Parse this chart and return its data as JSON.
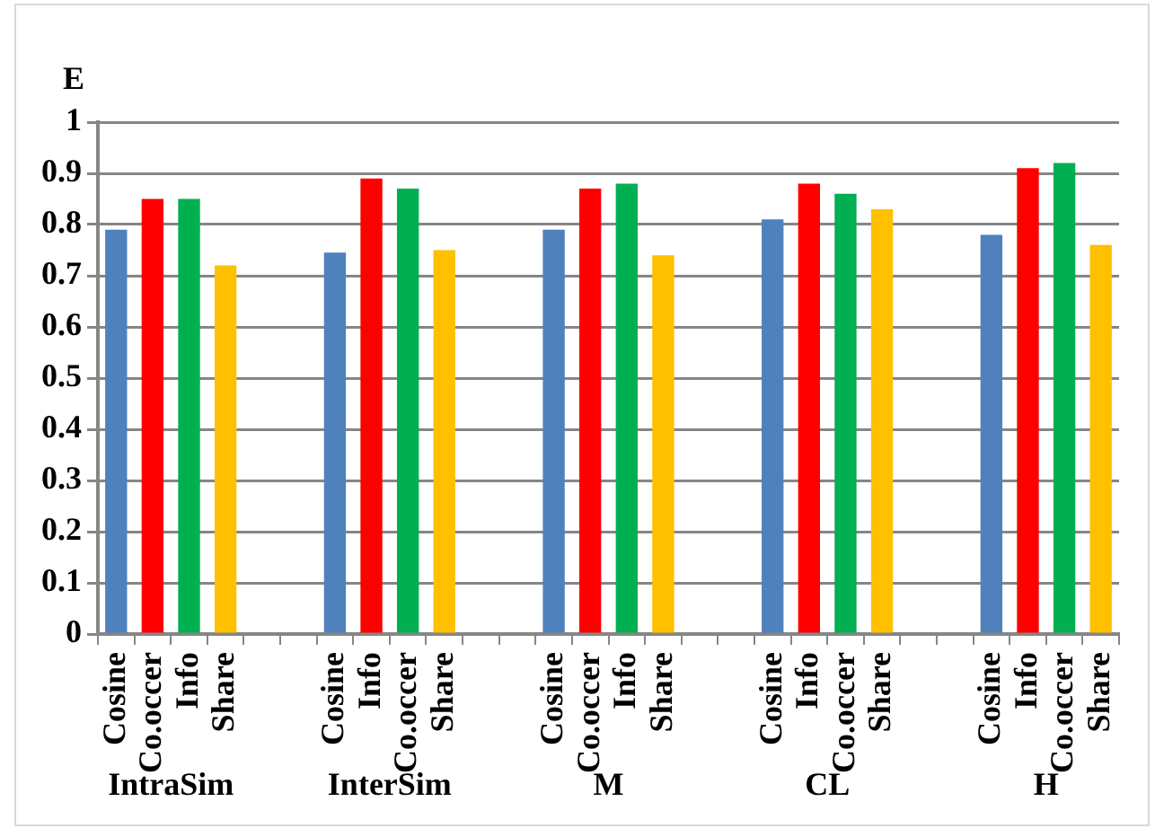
{
  "chart_data": {
    "type": "bar",
    "ylabel": "E",
    "categories": [
      "Cosine",
      "Co.occer",
      "Info",
      "Share",
      null,
      null,
      "Cosine",
      "Info",
      "Co.occer",
      "Share",
      null,
      null,
      "Cosine",
      "Co.occer",
      "Info",
      "Share",
      null,
      null,
      "Cosine",
      "Info",
      "Co.occer",
      "Share",
      null,
      null,
      "Cosine",
      "Info",
      "Co.occer",
      "Share"
    ],
    "values": [
      0.79,
      0.85,
      0.85,
      0.72,
      null,
      null,
      0.745,
      0.89,
      0.87,
      0.75,
      null,
      null,
      0.79,
      0.87,
      0.88,
      0.74,
      null,
      null,
      0.81,
      0.88,
      0.86,
      0.83,
      null,
      null,
      0.78,
      0.91,
      0.92,
      0.76
    ],
    "colors": [
      "#4f81bd",
      "#ff0000",
      "#00b050",
      "#ffc000",
      "#ffffff",
      "#ffffff",
      "#4f81bd",
      "#ff0000",
      "#00b050",
      "#ffc000",
      "#ffffff",
      "#ffffff",
      "#4f81bd",
      "#ff0000",
      "#00b050",
      "#ffc000",
      "#ffffff",
      "#ffffff",
      "#4f81bd",
      "#ff0000",
      "#00b050",
      "#ffc000",
      "#ffffff",
      "#ffffff",
      "#4f81bd",
      "#ff0000",
      "#00b050",
      "#ffc000"
    ],
    "annotations": [
      "IntraSim",
      "InterSim",
      "M",
      "CL",
      "H"
    ],
    "ylim": [
      0,
      1
    ],
    "yticks": [
      0,
      0.1,
      0.2,
      0.3,
      0.4,
      0.5,
      0.6,
      0.7,
      0.8,
      0.9,
      1
    ],
    "grid": "y",
    "legend": false
  }
}
